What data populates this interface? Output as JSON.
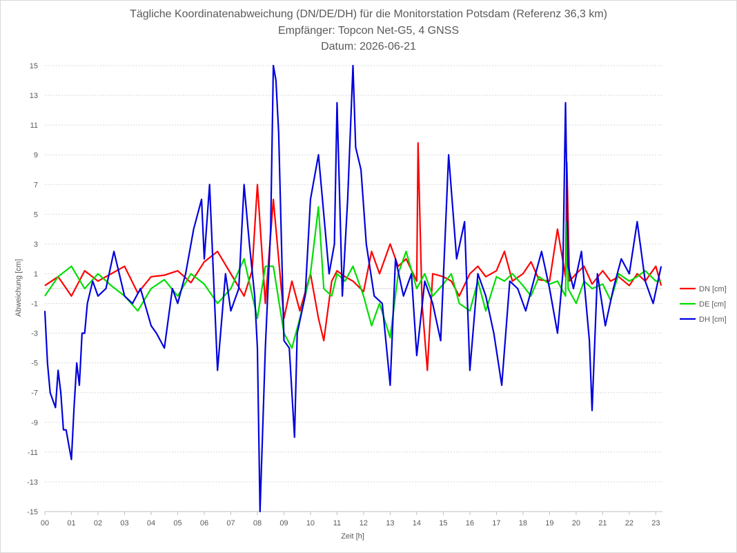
{
  "chart_data": {
    "type": "line",
    "title": "Tägliche Koordinatenabweichung (DN/DE/DH) für die Monitorstation Potsdam (Referenz 36,3 km)",
    "subtitle": "Empfänger: Topcon Net-G5, 4 GNSS",
    "date_line": "Datum: 2026-06-21",
    "xlabel": "Zeit [h]",
    "ylabel": "Abweichung [cm]",
    "xlim": [
      0,
      23.25
    ],
    "ylim": [
      -15,
      15
    ],
    "x_ticks": [
      "00",
      "01",
      "02",
      "03",
      "04",
      "05",
      "06",
      "07",
      "08",
      "09",
      "10",
      "11",
      "12",
      "13",
      "14",
      "15",
      "16",
      "17",
      "18",
      "19",
      "20",
      "21",
      "22",
      "23"
    ],
    "y_ticks": [
      15,
      13,
      11,
      9,
      7,
      5,
      3,
      1,
      -1,
      -3,
      -5,
      -7,
      -9,
      -11,
      -13,
      -15
    ],
    "grid": true,
    "legend_position": "right",
    "series": [
      {
        "name": "DN [cm]",
        "color": "#ff0000",
        "x": [
          0,
          0.5,
          1,
          1.5,
          2,
          2.5,
          3,
          3.5,
          4,
          4.5,
          5,
          5.5,
          6,
          6.5,
          7,
          7.5,
          7.8,
          8,
          8.3,
          8.6,
          9,
          9.3,
          9.6,
          10,
          10.3,
          10.5,
          10.8,
          11,
          11.3,
          11.6,
          12,
          12.3,
          12.6,
          13,
          13.3,
          13.6,
          14,
          14.05,
          14.2,
          14.4,
          14.6,
          15,
          15.3,
          15.6,
          16,
          16.3,
          16.6,
          17,
          17.3,
          17.6,
          18,
          18.3,
          18.6,
          19,
          19.3,
          19.6,
          19.65,
          19.75,
          20,
          20.3,
          20.6,
          21,
          21.3,
          21.6,
          22,
          22.3,
          22.6,
          23,
          23.2
        ],
        "y": [
          0.2,
          0.8,
          -0.5,
          1.2,
          0.5,
          1.0,
          1.5,
          -0.3,
          0.8,
          0.9,
          1.2,
          0.4,
          1.8,
          2.5,
          1.0,
          -0.5,
          1.2,
          7.0,
          -1.0,
          6.0,
          -2.0,
          0.5,
          -1.5,
          1.0,
          -2.0,
          -3.5,
          0.5,
          1.2,
          0.8,
          0.5,
          -0.2,
          2.5,
          1.0,
          3.0,
          1.5,
          2.0,
          0.5,
          9.8,
          -1.0,
          -5.5,
          1.0,
          0.8,
          0.5,
          -0.5,
          1.0,
          1.5,
          0.8,
          1.2,
          2.5,
          0.5,
          1.0,
          1.8,
          0.6,
          0.5,
          4.0,
          0.8,
          8.5,
          0.5,
          1.0,
          1.5,
          0.3,
          1.2,
          0.5,
          0.8,
          0.2,
          1.0,
          0.5,
          1.5,
          0.2
        ]
      },
      {
        "name": "DE [cm]",
        "color": "#00dd00",
        "x": [
          0,
          0.5,
          1,
          1.5,
          2,
          2.5,
          3,
          3.5,
          4,
          4.5,
          5,
          5.5,
          6,
          6.5,
          7,
          7.5,
          8,
          8.3,
          8.6,
          9,
          9.3,
          9.6,
          10,
          10.3,
          10.5,
          10.8,
          11,
          11.3,
          11.6,
          12,
          12.3,
          12.6,
          13,
          13.3,
          13.6,
          14,
          14.3,
          14.6,
          15,
          15.3,
          15.6,
          16,
          16.3,
          16.6,
          17,
          17.3,
          17.6,
          18,
          18.3,
          18.6,
          19,
          19.3,
          19.6,
          19.65,
          19.7,
          20,
          20.3,
          20.6,
          21,
          21.3,
          21.6,
          22,
          22.3,
          22.6,
          23,
          23.2
        ],
        "y": [
          -0.5,
          0.8,
          1.5,
          0.0,
          1.0,
          0.2,
          -0.5,
          -1.5,
          0.0,
          0.6,
          -0.5,
          1.0,
          0.3,
          -1.0,
          0.0,
          2.0,
          -2.0,
          1.5,
          1.5,
          -3.0,
          -4.0,
          -2.0,
          1.0,
          5.5,
          0.0,
          -0.5,
          1.0,
          0.5,
          1.5,
          -0.5,
          -2.5,
          -1.0,
          -3.3,
          1.0,
          2.5,
          0.0,
          1.0,
          -0.5,
          0.3,
          1.0,
          -1.0,
          -1.5,
          0.5,
          -1.5,
          0.8,
          0.5,
          1.0,
          0.2,
          -0.5,
          0.8,
          0.3,
          0.5,
          -0.5,
          4.5,
          0.0,
          -1.0,
          0.5,
          0.0,
          0.3,
          -0.8,
          1.0,
          0.5,
          0.8,
          1.2,
          0.5,
          0.5
        ]
      },
      {
        "name": "DH [cm]",
        "color": "#0000dd",
        "x": [
          0,
          0.1,
          0.2,
          0.3,
          0.4,
          0.5,
          0.6,
          0.7,
          0.8,
          0.9,
          1.0,
          1.1,
          1.2,
          1.3,
          1.4,
          1.5,
          1.6,
          1.8,
          2.0,
          2.3,
          2.6,
          3.0,
          3.3,
          3.6,
          4.0,
          4.2,
          4.5,
          4.8,
          5.0,
          5.3,
          5.6,
          5.9,
          6.0,
          6.2,
          6.5,
          6.8,
          7.0,
          7.3,
          7.5,
          7.7,
          7.9,
          8.0,
          8.1,
          8.3,
          8.5,
          8.6,
          8.7,
          8.8,
          9.0,
          9.2,
          9.4,
          9.5,
          9.8,
          10.0,
          10.3,
          10.5,
          10.7,
          10.9,
          11.0,
          11.2,
          11.4,
          11.6,
          11.7,
          11.9,
          12.1,
          12.4,
          12.7,
          13.0,
          13.2,
          13.5,
          13.8,
          14.0,
          14.3,
          14.6,
          14.9,
          15.2,
          15.5,
          15.8,
          16.0,
          16.3,
          16.6,
          16.9,
          17.2,
          17.5,
          17.8,
          18.1,
          18.4,
          18.7,
          19.0,
          19.3,
          19.5,
          19.6,
          19.7,
          19.9,
          20.2,
          20.5,
          20.6,
          20.8,
          21.1,
          21.4,
          21.7,
          22.0,
          22.3,
          22.6,
          22.9,
          23.2
        ],
        "y": [
          -1.5,
          -5.0,
          -7.0,
          -7.5,
          -8.0,
          -5.5,
          -7.0,
          -9.5,
          -9.5,
          -10.5,
          -11.5,
          -8.0,
          -5.0,
          -6.5,
          -3.0,
          -3.0,
          -1.0,
          0.5,
          -0.5,
          0.0,
          2.5,
          -0.5,
          -1.0,
          0.0,
          -2.5,
          -3.0,
          -4.0,
          0.0,
          -1.0,
          1.0,
          4.0,
          6.0,
          2.0,
          7.0,
          -5.5,
          1.0,
          -1.5,
          0.0,
          7.0,
          3.0,
          -0.5,
          -4.0,
          -15.0,
          -4.0,
          4.0,
          15.0,
          14.0,
          10.5,
          -3.5,
          -4.0,
          -10.0,
          -3.0,
          -0.5,
          6.0,
          9.0,
          5.0,
          1.0,
          3.0,
          12.5,
          -0.5,
          6.0,
          15.0,
          9.5,
          8.0,
          3.0,
          -0.5,
          -1.0,
          -6.5,
          2.0,
          -0.5,
          1.0,
          -4.5,
          0.5,
          -1.0,
          -3.5,
          9.0,
          2.0,
          4.5,
          -5.5,
          1.0,
          -0.5,
          -3.0,
          -6.5,
          0.5,
          0.0,
          -1.5,
          0.5,
          2.5,
          0.0,
          -3.0,
          1.0,
          12.5,
          1.5,
          0.0,
          2.5,
          -3.5,
          -8.2,
          1.0,
          -2.5,
          0.0,
          2.0,
          1.0,
          4.5,
          0.5,
          -1.0,
          1.5
        ]
      }
    ]
  }
}
